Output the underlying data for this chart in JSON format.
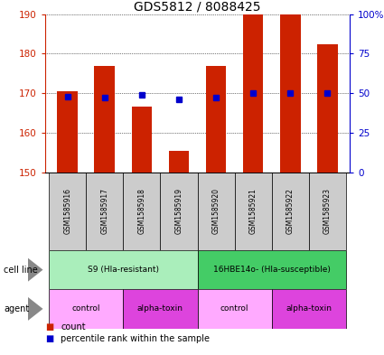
{
  "title": "GDS5812 / 8088425",
  "samples": [
    "GSM1585916",
    "GSM1585917",
    "GSM1585918",
    "GSM1585919",
    "GSM1585920",
    "GSM1585921",
    "GSM1585922",
    "GSM1585923"
  ],
  "counts": [
    170.5,
    177.0,
    166.5,
    155.5,
    177.0,
    190.0,
    190.0,
    182.5
  ],
  "percentile_ranks": [
    48,
    47,
    49,
    46,
    47,
    50,
    50,
    50
  ],
  "ylim_left": [
    150,
    190
  ],
  "ylim_right": [
    0,
    100
  ],
  "yticks_left": [
    150,
    160,
    170,
    180,
    190
  ],
  "yticks_right": [
    0,
    25,
    50,
    75,
    100
  ],
  "ytick_labels_right": [
    "0",
    "25",
    "50",
    "75",
    "100%"
  ],
  "bar_color": "#cc2200",
  "dot_color": "#0000cc",
  "cell_line_groups": [
    {
      "label": "S9 (Hla-resistant)",
      "start": 0,
      "end": 3,
      "color": "#aaeebb"
    },
    {
      "label": "16HBE14o- (Hla-susceptible)",
      "start": 4,
      "end": 7,
      "color": "#44cc66"
    }
  ],
  "agent_groups": [
    {
      "label": "control",
      "start": 0,
      "end": 1,
      "color": "#ffaaff"
    },
    {
      "label": "alpha-toxin",
      "start": 2,
      "end": 3,
      "color": "#dd44dd"
    },
    {
      "label": "control",
      "start": 4,
      "end": 5,
      "color": "#ffaaff"
    },
    {
      "label": "alpha-toxin",
      "start": 6,
      "end": 7,
      "color": "#dd44dd"
    }
  ],
  "legend_count_color": "#cc2200",
  "legend_dot_color": "#0000cc",
  "bar_width": 0.55,
  "tick_color_left": "#cc2200",
  "tick_color_right": "#0000cc",
  "grid_color": "#000000",
  "sample_box_color": "#cccccc",
  "background_color": "#ffffff"
}
